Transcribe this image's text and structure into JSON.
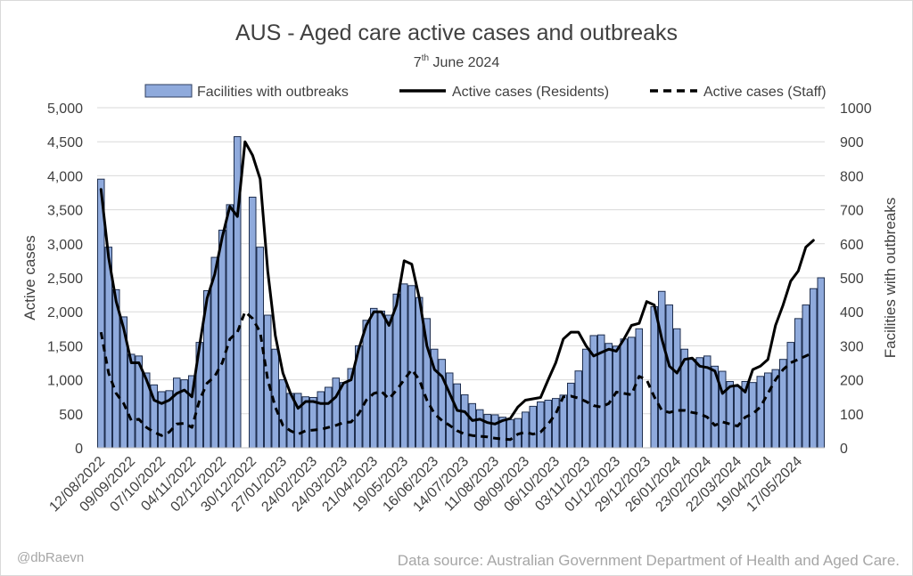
{
  "chart_data": {
    "type": "bar",
    "title": "AUS - Aged care active cases and outbreaks",
    "subtitle_day": "7",
    "subtitle_suffix": "th",
    "subtitle_rest": " June 2024",
    "ylabel_left": "Active cases",
    "ylabel_right": "Facilities with outbreaks",
    "ylim_left": [
      0,
      5000
    ],
    "ylim_right": [
      0,
      1000
    ],
    "yticks_left": [
      "0",
      "500",
      "1,000",
      "1,500",
      "2,000",
      "2,500",
      "3,000",
      "3,500",
      "4,000",
      "4,500",
      "5,000"
    ],
    "yticks_right": [
      "0",
      "100",
      "200",
      "300",
      "400",
      "500",
      "600",
      "700",
      "800",
      "900",
      "1000"
    ],
    "x_tick_labels": [
      "12/08/2022",
      "09/09/2022",
      "07/10/2022",
      "04/11/2022",
      "02/12/2022",
      "30/12/2022",
      "27/01/2023",
      "24/02/2023",
      "24/03/2023",
      "21/04/2023",
      "19/05/2023",
      "16/06/2023",
      "14/07/2023",
      "11/08/2023",
      "08/09/2023",
      "06/10/2023",
      "03/11/2023",
      "01/12/2023",
      "29/12/2023",
      "26/01/2024",
      "23/02/2024",
      "22/03/2024",
      "19/04/2024",
      "17/05/2024"
    ],
    "legend_position": "top",
    "series": [
      {
        "name": "Facilities with outbreaks",
        "kind": "bar",
        "axis": "right",
        "color": "#8faadc",
        "values": [
          790,
          590,
          465,
          385,
          275,
          270,
          220,
          185,
          165,
          168,
          205,
          200,
          212,
          310,
          462,
          560,
          640,
          715,
          915,
          null,
          737,
          590,
          390,
          290,
          200,
          160,
          160,
          150,
          148,
          165,
          178,
          205,
          192,
          233,
          300,
          375,
          410,
          402,
          390,
          452,
          482,
          477,
          442,
          380,
          290,
          260,
          220,
          188,
          156,
          130,
          112,
          98,
          97,
          90,
          83,
          86,
          105,
          122,
          135,
          140,
          145,
          155,
          190,
          226,
          290,
          330,
          332,
          307,
          299,
          320,
          325,
          350,
          null,
          415,
          460,
          420,
          350,
          290,
          260,
          265,
          270,
          240,
          225,
          195,
          180,
          195,
          192,
          210,
          220,
          230,
          260,
          310,
          380,
          420,
          468,
          500
        ],
        "gaps": [
          19,
          72
        ]
      },
      {
        "name": "Active cases (Residents)",
        "kind": "line",
        "axis": "left",
        "color": "#000000",
        "style": "solid",
        "points": [
          [
            0,
            3800
          ],
          [
            1,
            2800
          ],
          [
            2,
            2150
          ],
          [
            3,
            1750
          ],
          [
            4,
            1250
          ],
          [
            5,
            1250
          ],
          [
            6,
            1000
          ],
          [
            7,
            700
          ],
          [
            8,
            650
          ],
          [
            9,
            700
          ],
          [
            10,
            800
          ],
          [
            11,
            850
          ],
          [
            12,
            750
          ],
          [
            13,
            1500
          ],
          [
            14,
            2200
          ],
          [
            15,
            2550
          ],
          [
            16,
            3100
          ],
          [
            17,
            3550
          ],
          [
            18,
            3400
          ],
          [
            19,
            4500
          ],
          [
            20,
            4300
          ],
          [
            21,
            3950
          ],
          [
            22,
            2600
          ],
          [
            23,
            1650
          ],
          [
            24,
            1100
          ],
          [
            25,
            800
          ],
          [
            26,
            580
          ],
          [
            27,
            680
          ],
          [
            28,
            680
          ],
          [
            29,
            650
          ],
          [
            30,
            650
          ],
          [
            31,
            750
          ],
          [
            32,
            950
          ],
          [
            33,
            1000
          ],
          [
            34,
            1450
          ],
          [
            35,
            1800
          ],
          [
            36,
            2000
          ],
          [
            37,
            2000
          ],
          [
            38,
            1800
          ],
          [
            39,
            2100
          ],
          [
            40,
            2750
          ],
          [
            41,
            2700
          ],
          [
            42,
            2200
          ],
          [
            43,
            1500
          ],
          [
            44,
            1150
          ],
          [
            45,
            1050
          ],
          [
            46,
            800
          ],
          [
            47,
            550
          ],
          [
            48,
            530
          ],
          [
            49,
            400
          ],
          [
            50,
            420
          ],
          [
            51,
            370
          ],
          [
            52,
            350
          ],
          [
            53,
            400
          ],
          [
            54,
            430
          ],
          [
            55,
            600
          ],
          [
            56,
            700
          ],
          [
            57,
            720
          ],
          [
            58,
            740
          ],
          [
            59,
            1000
          ],
          [
            60,
            1250
          ],
          [
            61,
            1600
          ],
          [
            62,
            1700
          ],
          [
            63,
            1700
          ],
          [
            64,
            1500
          ],
          [
            65,
            1350
          ],
          [
            66,
            1400
          ],
          [
            67,
            1450
          ],
          [
            68,
            1420
          ],
          [
            69,
            1600
          ],
          [
            70,
            1800
          ],
          [
            71,
            1830
          ],
          [
            72,
            2150
          ],
          [
            73,
            2100
          ],
          [
            74,
            1600
          ],
          [
            75,
            1200
          ],
          [
            76,
            1100
          ],
          [
            77,
            1300
          ],
          [
            78,
            1320
          ],
          [
            79,
            1200
          ],
          [
            80,
            1180
          ],
          [
            81,
            1130
          ],
          [
            82,
            800
          ],
          [
            83,
            900
          ],
          [
            84,
            920
          ],
          [
            85,
            820
          ],
          [
            86,
            1150
          ],
          [
            87,
            1200
          ],
          [
            88,
            1300
          ],
          [
            89,
            1800
          ],
          [
            90,
            2100
          ],
          [
            91,
            2450
          ],
          [
            92,
            2600
          ],
          [
            93,
            2950
          ],
          [
            94,
            3050
          ]
        ]
      },
      {
        "name": "Active cases (Staff)",
        "kind": "line",
        "axis": "left",
        "color": "#000000",
        "style": "dashed",
        "points": [
          [
            0,
            1700
          ],
          [
            1,
            1100
          ],
          [
            2,
            800
          ],
          [
            3,
            650
          ],
          [
            4,
            400
          ],
          [
            5,
            420
          ],
          [
            6,
            300
          ],
          [
            7,
            230
          ],
          [
            8,
            180
          ],
          [
            9,
            230
          ],
          [
            10,
            350
          ],
          [
            11,
            360
          ],
          [
            12,
            300
          ],
          [
            13,
            700
          ],
          [
            14,
            950
          ],
          [
            15,
            1050
          ],
          [
            16,
            1250
          ],
          [
            17,
            1600
          ],
          [
            18,
            1700
          ],
          [
            19,
            2000
          ],
          [
            20,
            1900
          ],
          [
            21,
            1700
          ],
          [
            22,
            1000
          ],
          [
            23,
            600
          ],
          [
            24,
            330
          ],
          [
            25,
            250
          ],
          [
            26,
            200
          ],
          [
            27,
            250
          ],
          [
            28,
            260
          ],
          [
            29,
            270
          ],
          [
            30,
            300
          ],
          [
            31,
            330
          ],
          [
            32,
            370
          ],
          [
            33,
            380
          ],
          [
            34,
            500
          ],
          [
            35,
            700
          ],
          [
            36,
            800
          ],
          [
            37,
            830
          ],
          [
            38,
            720
          ],
          [
            39,
            850
          ],
          [
            40,
            1000
          ],
          [
            41,
            1150
          ],
          [
            42,
            1000
          ],
          [
            43,
            700
          ],
          [
            44,
            500
          ],
          [
            45,
            400
          ],
          [
            46,
            330
          ],
          [
            47,
            250
          ],
          [
            48,
            200
          ],
          [
            49,
            180
          ],
          [
            50,
            170
          ],
          [
            51,
            160
          ],
          [
            52,
            140
          ],
          [
            53,
            130
          ],
          [
            54,
            120
          ],
          [
            55,
            200
          ],
          [
            56,
            230
          ],
          [
            57,
            200
          ],
          [
            58,
            230
          ],
          [
            59,
            350
          ],
          [
            60,
            500
          ],
          [
            61,
            750
          ],
          [
            62,
            760
          ],
          [
            63,
            730
          ],
          [
            64,
            680
          ],
          [
            65,
            620
          ],
          [
            66,
            600
          ],
          [
            67,
            650
          ],
          [
            68,
            820
          ],
          [
            69,
            800
          ],
          [
            70,
            780
          ],
          [
            71,
            1050
          ],
          [
            72,
            1000
          ],
          [
            73,
            750
          ],
          [
            74,
            550
          ],
          [
            75,
            520
          ],
          [
            76,
            550
          ],
          [
            77,
            550
          ],
          [
            78,
            520
          ],
          [
            79,
            500
          ],
          [
            80,
            450
          ],
          [
            81,
            330
          ],
          [
            82,
            380
          ],
          [
            83,
            350
          ],
          [
            84,
            320
          ],
          [
            85,
            450
          ],
          [
            86,
            500
          ],
          [
            87,
            600
          ],
          [
            88,
            800
          ],
          [
            89,
            1000
          ],
          [
            90,
            1150
          ],
          [
            91,
            1250
          ],
          [
            92,
            1300
          ],
          [
            93,
            1350
          ],
          [
            94,
            1400
          ]
        ]
      }
    ]
  },
  "footer": {
    "credit": "@dbRaevn",
    "source": "Data source: Australian Government Department of Health and Aged Care."
  }
}
